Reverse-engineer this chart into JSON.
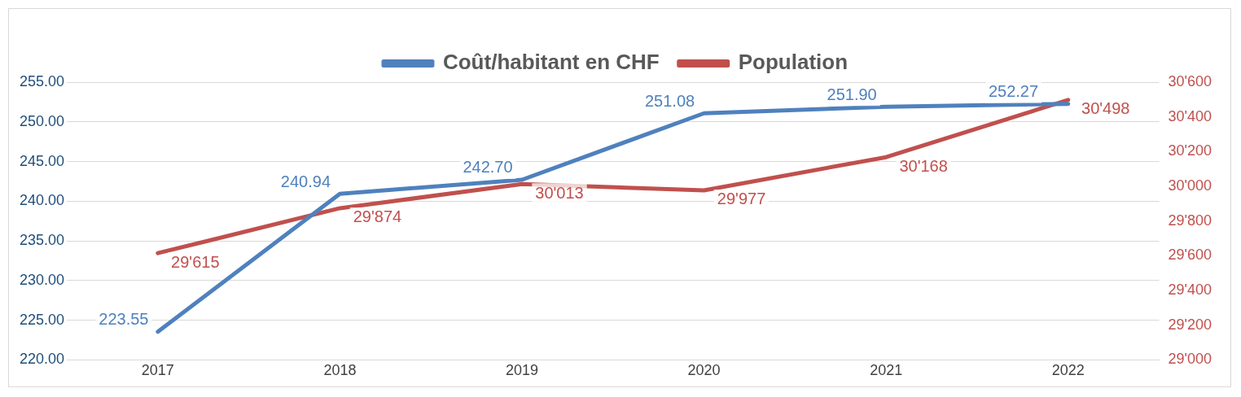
{
  "chart_data": {
    "type": "line",
    "categories": [
      "2017",
      "2018",
      "2019",
      "2020",
      "2021",
      "2022"
    ],
    "series": [
      {
        "name": "Coût/habitant en CHF",
        "color": "#4f81bd",
        "values": [
          223.55,
          240.94,
          242.7,
          251.08,
          251.9,
          252.27
        ],
        "value_labels": [
          "223.55",
          "240.94",
          "242.70",
          "251.08",
          "251.90",
          "252.27"
        ]
      },
      {
        "name": "Population",
        "color": "#c0504d",
        "axis": "y2",
        "values": [
          29615,
          29874,
          30013,
          29977,
          30168,
          30498
        ],
        "value_labels": [
          "29'615",
          "29'874",
          "30'013",
          "29'977",
          "30'168",
          "30'498"
        ]
      }
    ],
    "ylim": [
      220,
      255
    ],
    "yticks": [
      {
        "value": 220,
        "label": "220.00"
      },
      {
        "value": 225,
        "label": "225.00"
      },
      {
        "value": 230,
        "label": "230.00"
      },
      {
        "value": 235,
        "label": "235.00"
      },
      {
        "value": 240,
        "label": "240.00"
      },
      {
        "value": 245,
        "label": "245.00"
      },
      {
        "value": 250,
        "label": "250.00"
      },
      {
        "value": 255,
        "label": "255.00"
      }
    ],
    "y2lim": [
      29000,
      30600
    ],
    "y2ticks": [
      {
        "value": 29000,
        "label": "29'000"
      },
      {
        "value": 29200,
        "label": "29'200"
      },
      {
        "value": 29400,
        "label": "29'400"
      },
      {
        "value": 29600,
        "label": "29'600"
      },
      {
        "value": 29800,
        "label": "29'800"
      },
      {
        "value": 30000,
        "label": "30'000"
      },
      {
        "value": 30200,
        "label": "30'200"
      },
      {
        "value": 30400,
        "label": "30'400"
      },
      {
        "value": 30600,
        "label": "30'600"
      }
    ],
    "grid": "y",
    "legend": "top",
    "marker": "none",
    "line_style": "solid"
  }
}
